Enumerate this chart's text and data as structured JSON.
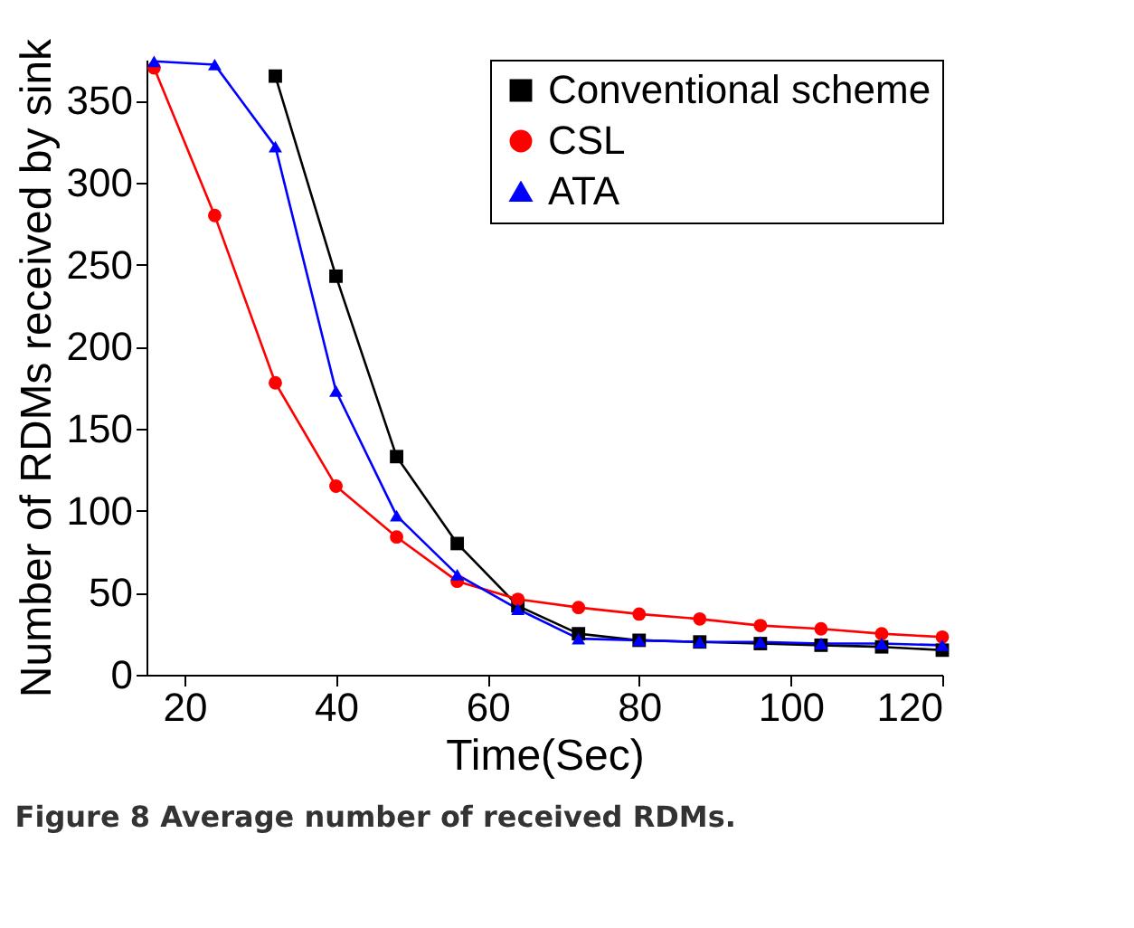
{
  "chart_data": {
    "type": "line",
    "xlabel": "Time(Sec)",
    "ylabel": "Number of RDMs received by sink",
    "x": [
      16,
      24,
      32,
      40,
      48,
      56,
      64,
      72,
      80,
      88,
      96,
      104,
      112,
      120
    ],
    "series": [
      {
        "name": "Conventional scheme",
        "color": "#000000",
        "marker": "square",
        "values": [
          null,
          null,
          365,
          243,
          133,
          80,
          42,
          25,
          21,
          20,
          19,
          18,
          17,
          15
        ]
      },
      {
        "name": "CSL",
        "color": "#ff0000",
        "marker": "circle",
        "values": [
          370,
          280,
          178,
          115,
          84,
          57,
          46,
          41,
          37,
          34,
          30,
          28,
          25,
          23
        ]
      },
      {
        "name": "ATA",
        "color": "#0000ff",
        "marker": "triangle",
        "values": [
          374,
          372,
          322,
          173,
          97,
          61,
          40,
          22,
          21,
          20,
          20,
          19,
          19,
          18
        ]
      }
    ],
    "xlim": [
      15,
      120
    ],
    "xticks": [
      20,
      40,
      60,
      80,
      100,
      120
    ],
    "ylim": [
      0,
      375
    ],
    "yticks": [
      0,
      50,
      100,
      150,
      200,
      250,
      300,
      350
    ],
    "grid": false,
    "legend": "top right",
    "line_style": "solid",
    "annotations": [
      "Figure 8 Average number of received RDMs."
    ]
  }
}
